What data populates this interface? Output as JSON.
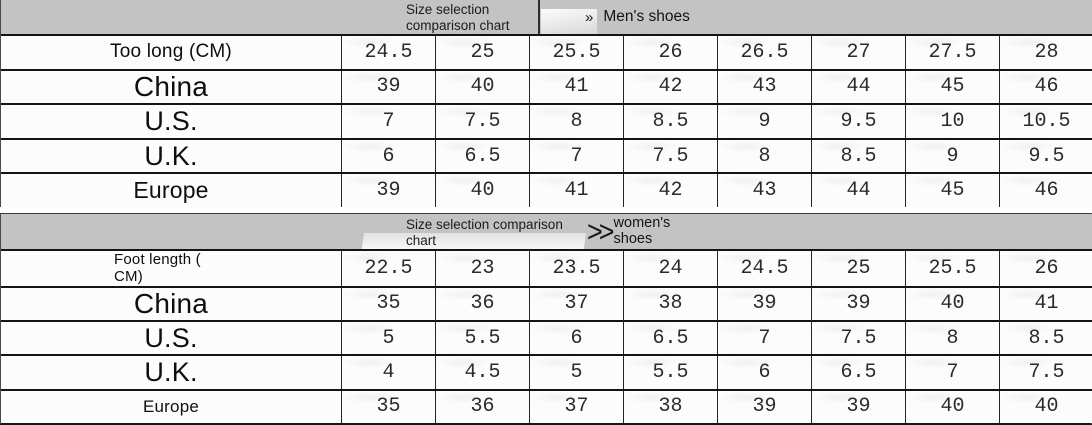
{
  "colors": {
    "header_band": "#c3c3c3",
    "border": "#141414",
    "cell_background": "#fcfcfc",
    "text": "#1c1c1c"
  },
  "chart_data": [
    {
      "type": "table",
      "header": {
        "title_lines": [
          "Size selection",
          "comparison chart"
        ],
        "arrow": "»",
        "category_lines": [
          "Men's shoes"
        ]
      },
      "rows": [
        {
          "label_lines": [
            "Too long (CM)"
          ],
          "values": [
            "24.5",
            "25",
            "25.5",
            "26",
            "26.5",
            "27",
            "27.5",
            "28"
          ]
        },
        {
          "label_lines": [
            "China"
          ],
          "values": [
            "39",
            "40",
            "41",
            "42",
            "43",
            "44",
            "45",
            "46"
          ]
        },
        {
          "label_lines": [
            "U.S."
          ],
          "values": [
            "7",
            "7.5",
            "8",
            "8.5",
            "9",
            "9.5",
            "10",
            "10.5"
          ]
        },
        {
          "label_lines": [
            "U.K."
          ],
          "values": [
            "6",
            "6.5",
            "7",
            "7.5",
            "8",
            "8.5",
            "9",
            "9.5"
          ]
        },
        {
          "label_lines": [
            "Europe"
          ],
          "values": [
            "39",
            "40",
            "41",
            "42",
            "43",
            "44",
            "45",
            "46"
          ]
        }
      ]
    },
    {
      "type": "table",
      "header": {
        "title_lines": [
          "Size selection comparison",
          "chart"
        ],
        "arrow": ">>",
        "category_lines": [
          "women's",
          "shoes"
        ]
      },
      "rows": [
        {
          "label_lines": [
            "Foot length (",
            "CM)"
          ],
          "values": [
            "22.5",
            "23",
            "23.5",
            "24",
            "24.5",
            "25",
            "25.5",
            "26"
          ]
        },
        {
          "label_lines": [
            "China"
          ],
          "values": [
            "35",
            "36",
            "37",
            "38",
            "39",
            "39",
            "40",
            "41"
          ]
        },
        {
          "label_lines": [
            "U.S."
          ],
          "values": [
            "5",
            "5.5",
            "6",
            "6.5",
            "7",
            "7.5",
            "8",
            "8.5"
          ]
        },
        {
          "label_lines": [
            "U.K."
          ],
          "values": [
            "4",
            "4.5",
            "5",
            "5.5",
            "6",
            "6.5",
            "7",
            "7.5"
          ]
        },
        {
          "label_lines": [
            "Europe"
          ],
          "values": [
            "35",
            "36",
            "37",
            "38",
            "39",
            "39",
            "40",
            "40"
          ]
        }
      ]
    }
  ]
}
